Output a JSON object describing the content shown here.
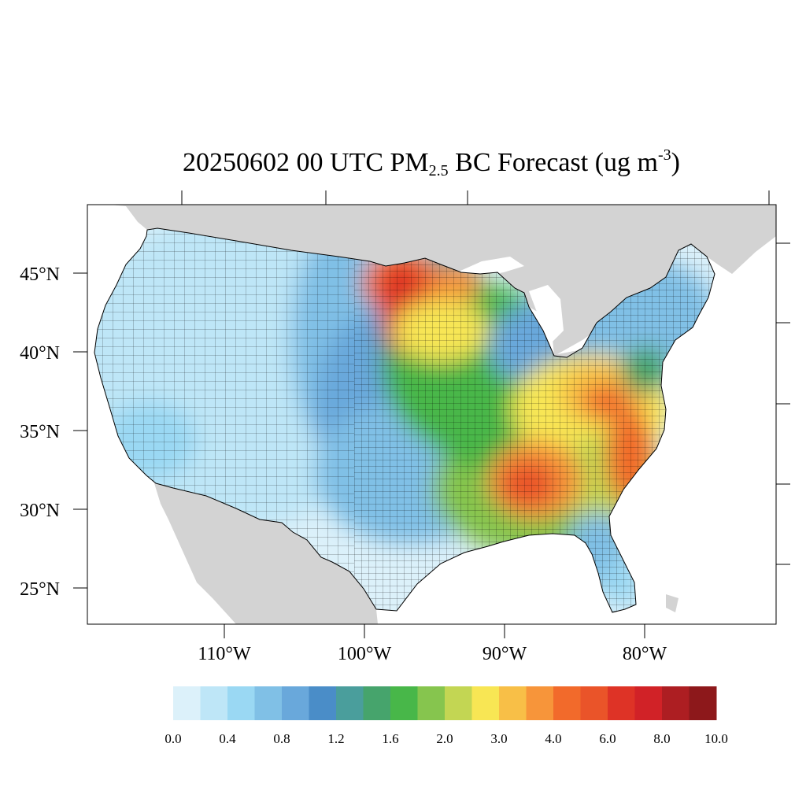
{
  "title": {
    "prefix": "20250602 00 UTC PM",
    "subscript": "2.5",
    "middle": " BC Forecast (ug m",
    "superscript": "-3",
    "suffix": ")"
  },
  "map": {
    "lat_labels": [
      {
        "value": 45,
        "label": "45°N"
      },
      {
        "value": 40,
        "label": "40°N"
      },
      {
        "value": 35,
        "label": "35°N"
      },
      {
        "value": 30,
        "label": "30°N"
      },
      {
        "value": 25,
        "label": "25°N"
      }
    ],
    "lon_labels": [
      {
        "value": -110,
        "label": "110°W"
      },
      {
        "value": -100,
        "label": "100°W"
      },
      {
        "value": -90,
        "label": "90°W"
      },
      {
        "value": -80,
        "label": "80°W"
      }
    ],
    "colors": {
      "land_outside": "#d3d3d3",
      "water": "#ffffff",
      "border": "#000000"
    }
  },
  "colorbar": {
    "colors": [
      "#dcf1fa",
      "#bee6f7",
      "#9ad8f3",
      "#80c0e6",
      "#69a8db",
      "#4a8dc8",
      "#4a9e9c",
      "#46a46c",
      "#48b749",
      "#86c54e",
      "#c3d653",
      "#f8e654",
      "#f8bf47",
      "#f7953a",
      "#f26a2b",
      "#ea5429",
      "#de3326",
      "#d12227",
      "#ad1e22",
      "#8d181b"
    ],
    "labels": [
      "0.0",
      "0.4",
      "0.8",
      "1.2",
      "1.6",
      "2.0",
      "3.0",
      "4.0",
      "6.0",
      "8.0",
      "10.0"
    ]
  }
}
